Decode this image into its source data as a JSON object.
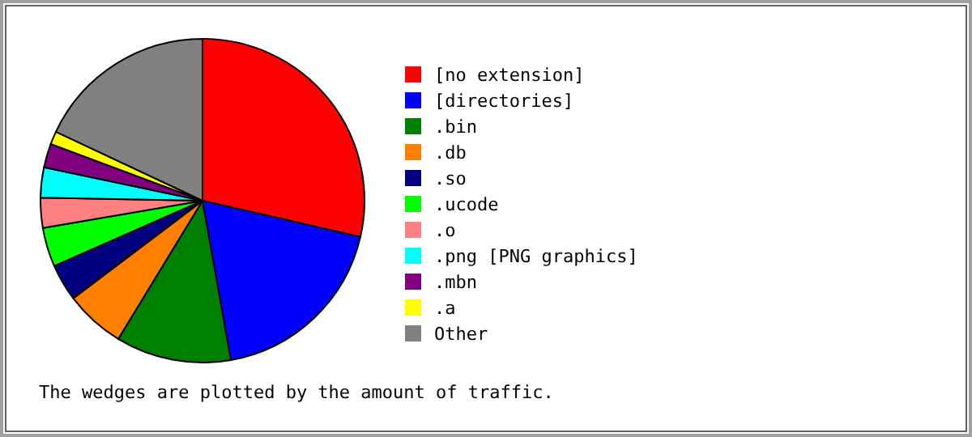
{
  "chart_data": {
    "type": "pie",
    "categories": [
      "[no extension]",
      "[directories]",
      ".bin",
      ".db",
      ".so",
      ".ucode",
      ".o",
      ".png  [PNG graphics]",
      ".mbn",
      ".a",
      "Other"
    ],
    "values": [
      28.6,
      18.6,
      11.5,
      6,
      3.7,
      3.9,
      3,
      3,
      2.4,
      1.3,
      18
    ],
    "colors": [
      "#ff0000",
      "#0000ff",
      "#008000",
      "#ff8000",
      "#000080",
      "#00ff00",
      "#ff8080",
      "#00ffff",
      "#800080",
      "#ffff00",
      "#808080"
    ],
    "legend": "right",
    "annotations": [
      "The wedges are plotted by the amount of traffic."
    ]
  }
}
